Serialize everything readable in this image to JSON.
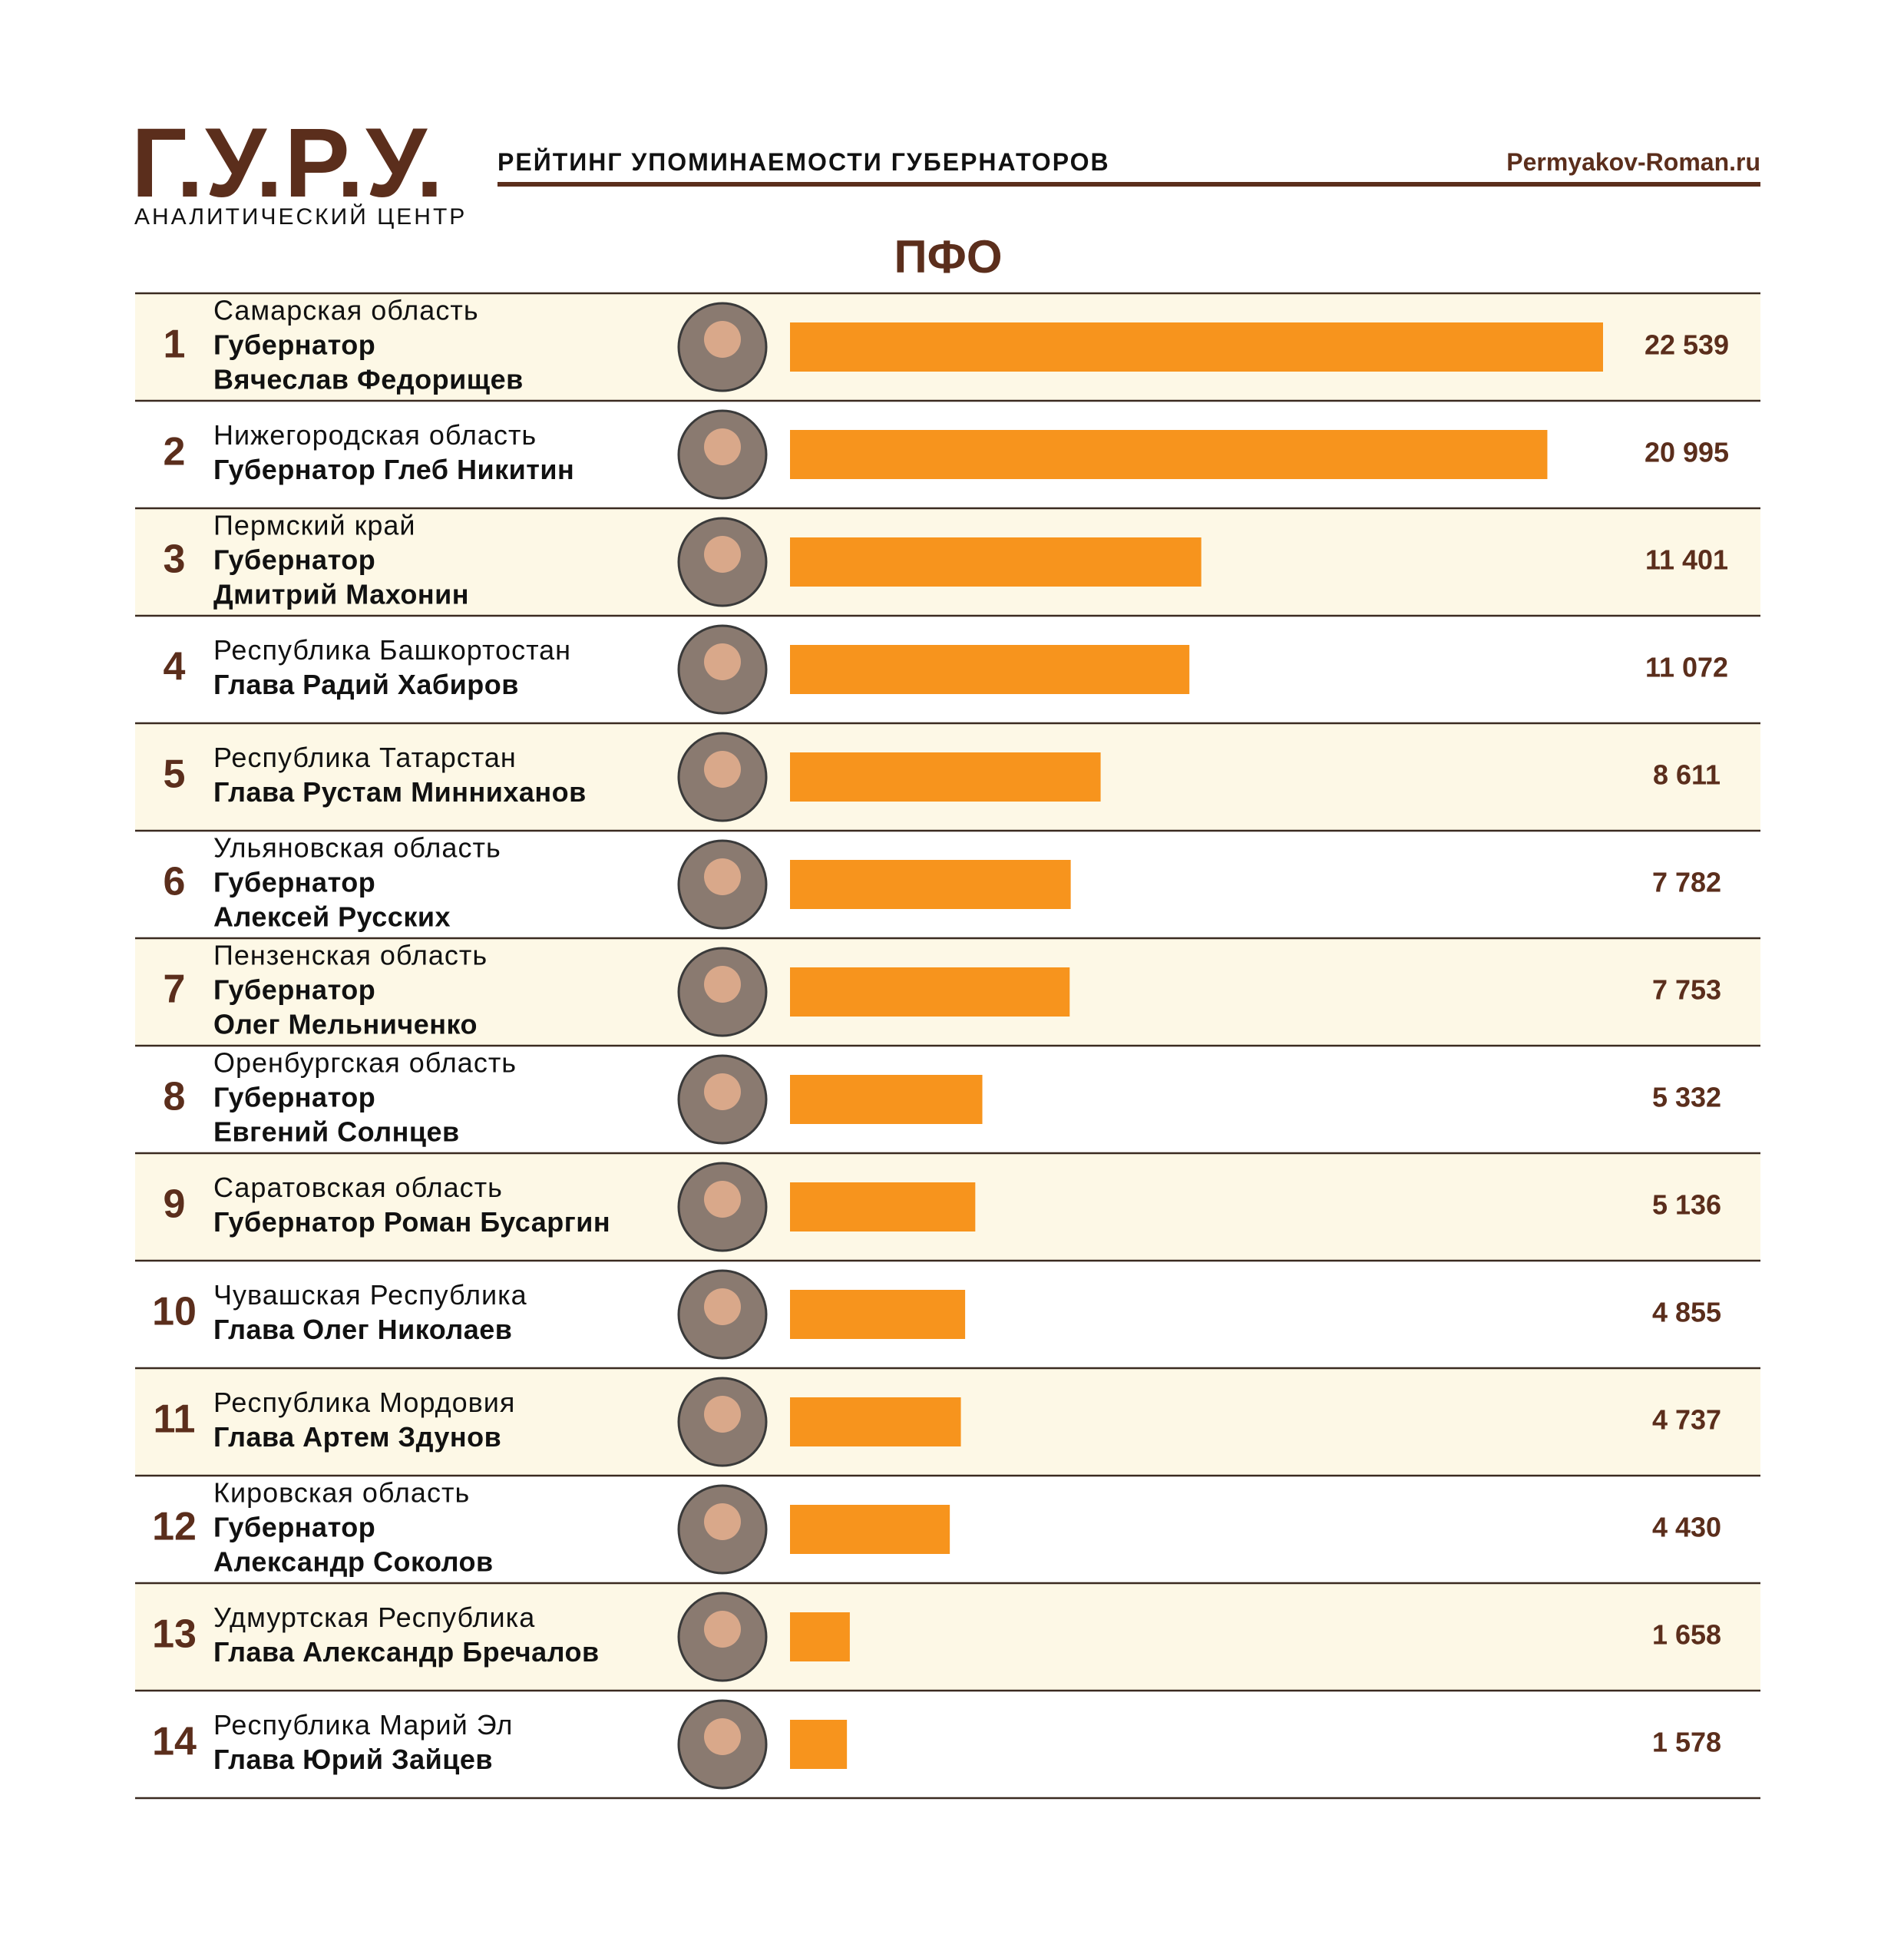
{
  "header": {
    "logo": "Г.У.Р.У.",
    "logo_caption": "АНАЛИТИЧЕСКИЙ ЦЕНТР",
    "title": "РЕЙТИНГ УПОМИНАЕМОСТИ ГУБЕРНАТОРОВ",
    "site": "Permyakov-Roman.ru"
  },
  "chart_data": {
    "type": "bar",
    "orientation": "horizontal",
    "title": "ПФО",
    "ranks": [
      1,
      2,
      3,
      4,
      5,
      6,
      7,
      8,
      9,
      10,
      11,
      12,
      13,
      14
    ],
    "categories": [
      "Самарская область",
      "Нижегородская область",
      "Пермский край",
      "Республика Башкортостан",
      "Республика Татарстан",
      "Ульяновская область",
      "Пензенская область",
      "Оренбургская область",
      "Саратовская область",
      "Чувашская Республика",
      "Республика Мордовия",
      "Кировская область",
      "Удмуртская Республика",
      "Республика Марий Эл"
    ],
    "leaders": [
      [
        "Губернатор",
        "Вячеслав Федорищев"
      ],
      [
        "Губернатор Глеб Никитин"
      ],
      [
        "Губернатор",
        "Дмитрий Махонин"
      ],
      [
        "Глава Радий Хабиров"
      ],
      [
        "Глава Рустам Минниханов"
      ],
      [
        "Губернатор",
        "Алексей Русских"
      ],
      [
        "Губернатор",
        "Олег Мельниченко"
      ],
      [
        "Губернатор",
        "Евгений Солнцев"
      ],
      [
        "Губернатор Роман Бусаргин"
      ],
      [
        "Глава Олег Николаев"
      ],
      [
        "Глава Артем Здунов"
      ],
      [
        "Губернатор",
        "Александр Соколов"
      ],
      [
        "Глава Александр Бречалов"
      ],
      [
        "Глава Юрий Зайцев"
      ]
    ],
    "values": [
      22539,
      20995,
      11401,
      11072,
      8611,
      7782,
      7753,
      5332,
      5136,
      4855,
      4737,
      4430,
      1658,
      1578
    ],
    "value_labels": [
      "22 539",
      "20 995",
      "11 401",
      "11 072",
      "8 611",
      "7 782",
      "7 753",
      "5 332",
      "5 136",
      "4 855",
      "4 737",
      "4 430",
      "1 658",
      "1 578"
    ],
    "color": "#f7941d",
    "band_color": "#fdf8e6"
  }
}
